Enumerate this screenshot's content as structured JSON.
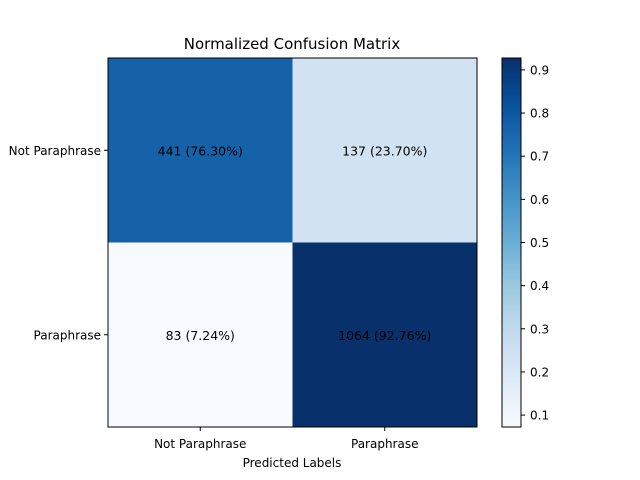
{
  "chart_data": {
    "type": "heatmap",
    "title": "Normalized Confusion Matrix",
    "xlabel": "Predicted Labels",
    "ylabel": "",
    "x_categories": [
      "Not Paraphrase",
      "Paraphrase"
    ],
    "y_categories": [
      "Not Paraphrase",
      "Paraphrase"
    ],
    "values": [
      [
        0.763,
        0.237
      ],
      [
        0.0724,
        0.9276
      ]
    ],
    "counts": [
      [
        441,
        137
      ],
      [
        83,
        1064
      ]
    ],
    "cell_labels": [
      [
        "441 (76.30%)",
        "137 (23.70%)"
      ],
      [
        "83 (7.24%)",
        "1064 (92.76%)"
      ]
    ],
    "colormap": "Blues",
    "colorbar": {
      "range": [
        0.0724,
        0.9276
      ],
      "ticks": [
        0.1,
        0.2,
        0.3,
        0.4,
        0.5,
        0.6,
        0.7,
        0.8,
        0.9
      ],
      "tick_labels": [
        "0.1",
        "0.2",
        "0.3",
        "0.4",
        "0.5",
        "0.6",
        "0.7",
        "0.8",
        "0.9"
      ]
    },
    "colors": {
      "low": "#f7fbff",
      "high": "#08306b",
      "frame": "#000000"
    }
  }
}
